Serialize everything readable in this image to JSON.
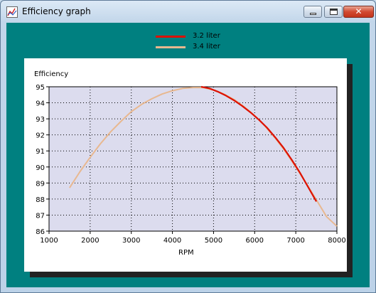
{
  "window": {
    "title": "Efficiency graph"
  },
  "legend": [
    {
      "label": "3.2 liter",
      "color": "#dd1100"
    },
    {
      "label": "3.4 liter",
      "color": "#e8b890"
    }
  ],
  "colors": {
    "client_bg": "#008080",
    "plot_bg": "#dcdcee"
  },
  "chart_data": {
    "type": "line",
    "title": "",
    "ylabel": "Efficiency",
    "xlabel": "RPM",
    "xlim": [
      1000,
      8000
    ],
    "ylim": [
      86,
      95
    ],
    "xticks": [
      1000,
      2000,
      3000,
      4000,
      5000,
      6000,
      7000,
      8000
    ],
    "yticks": [
      86,
      87,
      88,
      89,
      90,
      91,
      92,
      93,
      94,
      95
    ],
    "grid": true,
    "legend_position": "top-center",
    "series": [
      {
        "name": "3.2 liter",
        "color": "#dd1100",
        "x": [
          4700,
          4900,
          5100,
          5300,
          5500,
          5700,
          5900,
          6100,
          6300,
          6500,
          6700,
          6900,
          7100,
          7300,
          7500
        ],
        "y": [
          95.0,
          94.9,
          94.7,
          94.45,
          94.15,
          93.8,
          93.4,
          92.95,
          92.45,
          91.85,
          91.2,
          90.45,
          89.65,
          88.75,
          87.85
        ]
      },
      {
        "name": "3.4 liter",
        "color": "#e8b890",
        "x": [
          1500,
          1750,
          2000,
          2250,
          2500,
          2750,
          3000,
          3250,
          3500,
          3750,
          4000,
          4250,
          4500,
          4750,
          5000,
          5250,
          5500,
          5750,
          6000,
          6250,
          6500,
          6750,
          7000,
          7250,
          7500,
          7750,
          8000
        ],
        "y": [
          88.7,
          89.7,
          90.6,
          91.45,
          92.2,
          92.85,
          93.45,
          93.9,
          94.25,
          94.55,
          94.75,
          94.9,
          94.95,
          94.95,
          94.8,
          94.55,
          94.2,
          93.75,
          93.2,
          92.55,
          91.8,
          90.95,
          90.0,
          89.0,
          87.95,
          86.9,
          86.3
        ]
      }
    ]
  }
}
